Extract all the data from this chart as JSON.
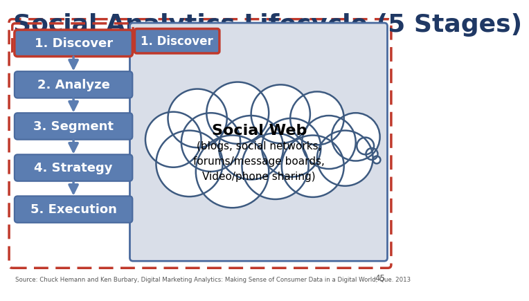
{
  "title": "Social Analytics Lifecycle (5 Stages)",
  "title_fontsize": 26,
  "title_color": "#1F3864",
  "stages": [
    "1. Discover",
    "2. Analyze",
    "3. Segment",
    "4. Strategy",
    "5. Execution"
  ],
  "stage_box_color": "#5B7DB1",
  "stage_box_edge": "#4A6A9E",
  "stage1_box_edge": "#C0392B",
  "stage_text_color": "#FFFFFF",
  "outer_dashed_color": "#C0392B",
  "right_panel_bg": "#D9DEE8",
  "right_panel_edge": "#4A6A9E",
  "discover_label": "1. Discover",
  "discover_box_bg": "#5B7DB1",
  "discover_box_edge": "#C0392B",
  "cloud_bg": "#FFFFFF",
  "cloud_edge": "#3D5A80",
  "social_web_title": "Social Web",
  "social_web_subtitle": "(blogs, social networks,\nforums/message boards,\nVideo/phone sharing)",
  "source_text": "Source: Chuck Hemann and Ken Burbary, Digital Marketing Analytics: Making Sense of Consumer Data in a Digital World, Que. 2013",
  "page_number": "45",
  "arrow_color": "#5B7DB1",
  "background_color": "#FFFFFF"
}
